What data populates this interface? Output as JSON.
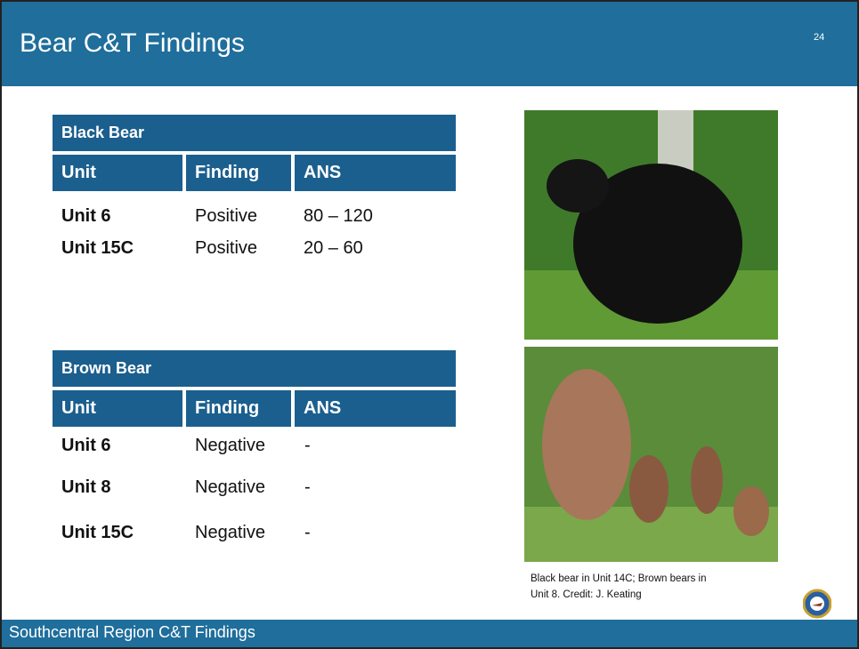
{
  "header": {
    "title": "Bear C&T Findings",
    "page_number": "24"
  },
  "tables": [
    {
      "title": "Black Bear",
      "columns": [
        "Unit",
        "Finding",
        "ANS"
      ],
      "rows": [
        [
          "Unit 6",
          "Positive",
          "80 – 120"
        ],
        [
          "Unit 15C",
          "Positive",
          "20 – 60"
        ]
      ]
    },
    {
      "title": "Brown Bear",
      "columns": [
        "Unit",
        "Finding",
        "ANS"
      ],
      "rows": [
        [
          "Unit 6",
          "Negative",
          "-"
        ],
        [
          "Unit 8",
          "Negative",
          "-"
        ],
        [
          "Unit 15C",
          "Negative",
          "-"
        ]
      ]
    }
  ],
  "caption": [
    "Black bear in Unit 14C; Brown bears in",
    "Unit 8. Credit: J. Keating"
  ],
  "footer": {
    "text": "Southcentral Region C&T Findings"
  }
}
